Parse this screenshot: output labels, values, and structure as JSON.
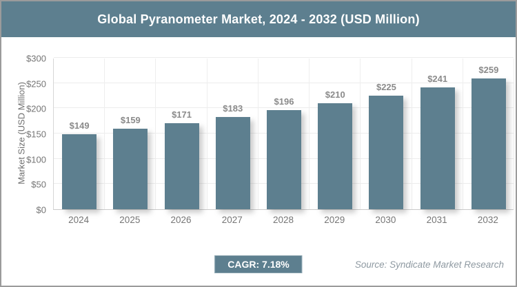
{
  "title": "Global Pyranometer Market, 2024 - 2032 (USD Million)",
  "footer": {
    "cagr_label": "CAGR: 7.18%",
    "source": "Source: Syndicate Market Research"
  },
  "colors": {
    "accent_slate": "#5d7f8f",
    "bar_fill": "#5d7f8f",
    "title_text": "#ffffff",
    "axis_text": "#757575",
    "value_label_text": "#8a8a8a",
    "gridline": "#ececec",
    "frame_border": "#9b9b9b",
    "source_text": "#8e99a1"
  },
  "chart_data": {
    "type": "bar",
    "title": "Global Pyranometer Market, 2024 - 2032 (USD Million)",
    "categories": [
      "2024",
      "2025",
      "2026",
      "2027",
      "2028",
      "2029",
      "2030",
      "2031",
      "2032"
    ],
    "values": [
      149,
      159,
      171,
      183,
      196,
      210,
      225,
      241,
      259
    ],
    "value_labels": [
      "$149",
      "$159",
      "$171",
      "$183",
      "$196",
      "$210",
      "$225",
      "$241",
      "$259"
    ],
    "xlabel": "",
    "ylabel": "Market Size (USD Million)",
    "ylim": [
      0,
      300
    ],
    "yticks": [
      0,
      50,
      100,
      150,
      200,
      250,
      300
    ],
    "ytick_labels": [
      "$0",
      "$50",
      "$100",
      "$150",
      "$200",
      "$250",
      "$300"
    ],
    "grid": true,
    "legend": false,
    "annotations": [
      "CAGR: 7.18%"
    ]
  }
}
